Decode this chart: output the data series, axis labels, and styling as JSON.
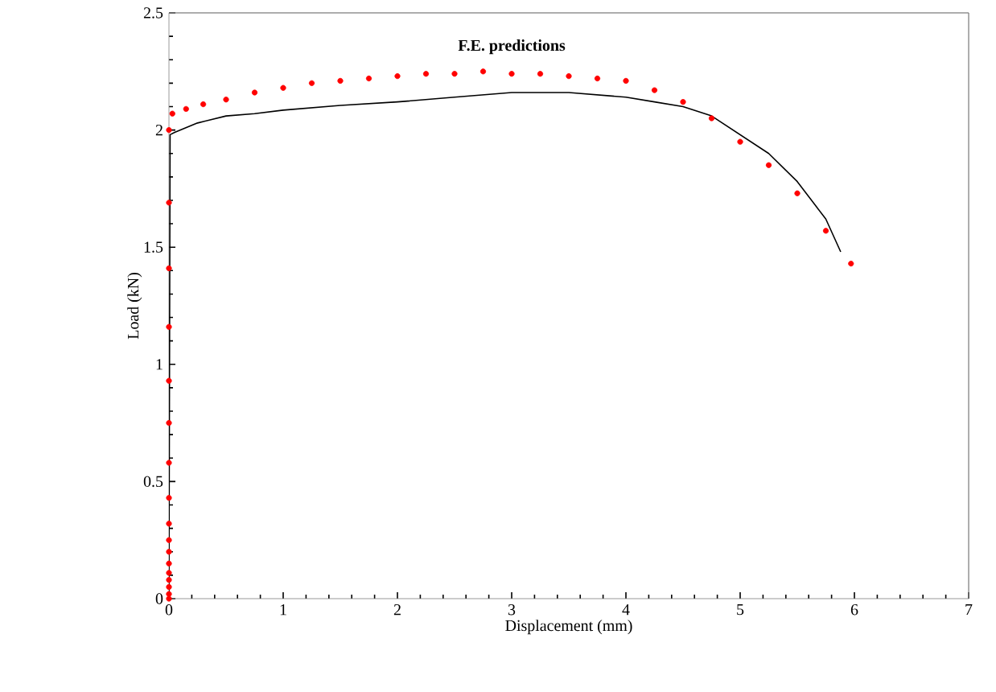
{
  "chart_data": {
    "type": "line",
    "xlabel": "Displacement (mm)",
    "ylabel": "Load (kN)",
    "xlim": [
      0,
      7
    ],
    "ylim": [
      0,
      2.5
    ],
    "xticks": [
      0,
      1,
      2,
      3,
      4,
      5,
      6,
      7
    ],
    "yticks": [
      0,
      0.5,
      1,
      1.5,
      2,
      2.5
    ],
    "series": [
      {
        "name": "F.E. predictions",
        "type": "scatter",
        "marker": "circle",
        "color": "#ff0000",
        "x": [
          0,
          0,
          0,
          0,
          0,
          0,
          0,
          0,
          0,
          0,
          0,
          0,
          0,
          0,
          0,
          0,
          0,
          0.03,
          0.15,
          0.3,
          0.5,
          0.75,
          1,
          1.25,
          1.5,
          1.75,
          2,
          2.25,
          2.5,
          2.75,
          3,
          3.25,
          3.5,
          3.75,
          4,
          4.25,
          4.5,
          4.75,
          5,
          5.25,
          5.5,
          5.75,
          5.97
        ],
        "values": [
          0,
          0.02,
          0.05,
          0.08,
          0.11,
          0.15,
          0.2,
          0.25,
          0.32,
          0.43,
          0.58,
          0.75,
          0.93,
          1.16,
          1.41,
          1.69,
          2.0,
          2.07,
          2.09,
          2.11,
          2.13,
          2.16,
          2.18,
          2.2,
          2.21,
          2.22,
          2.23,
          2.24,
          2.24,
          2.25,
          2.24,
          2.24,
          2.23,
          2.22,
          2.21,
          2.17,
          2.12,
          2.05,
          1.95,
          1.85,
          1.73,
          1.57,
          1.43
        ]
      },
      {
        "marker": "none",
        "color": "#000000",
        "x": [
          0,
          0.01,
          0.05,
          0.25,
          0.5,
          0.75,
          1,
          1.5,
          2,
          2.5,
          3,
          3.5,
          4,
          4.25,
          4.5,
          4.75,
          5,
          5.25,
          5.5,
          5.75,
          5.88
        ],
        "values": [
          0,
          1.98,
          1.99,
          2.03,
          2.06,
          2.07,
          2.085,
          2.105,
          2.12,
          2.14,
          2.16,
          2.16,
          2.14,
          2.12,
          2.1,
          2.06,
          1.98,
          1.9,
          1.78,
          1.62,
          1.48
        ]
      }
    ]
  }
}
